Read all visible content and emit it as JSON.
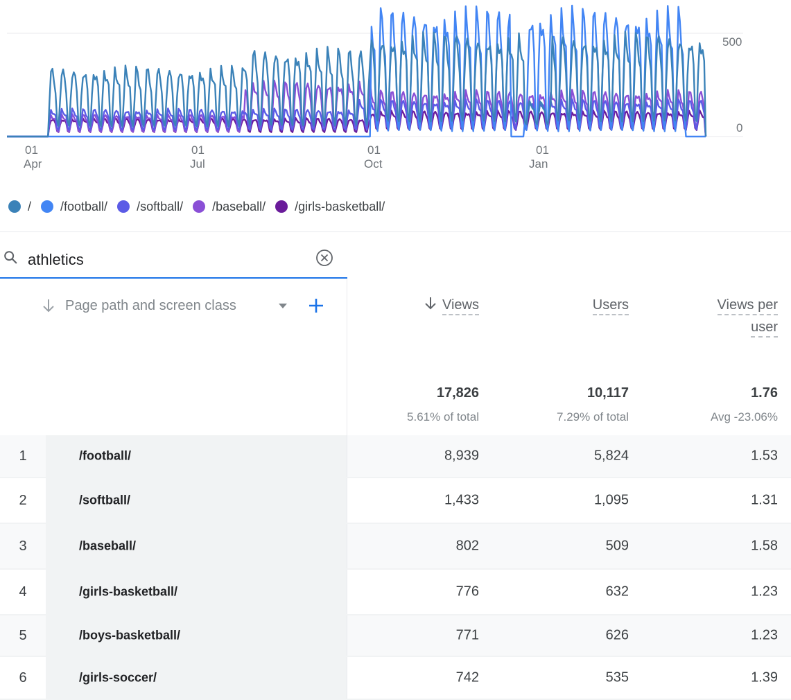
{
  "chart_data": {
    "type": "line",
    "x_ticks": [
      {
        "day": "01",
        "month": "Apr"
      },
      {
        "day": "01",
        "month": "Jul"
      },
      {
        "day": "01",
        "month": "Oct"
      },
      {
        "day": "01",
        "month": "Jan"
      }
    ],
    "y_ticks": [
      "500",
      "0"
    ],
    "ylim": [
      0,
      700
    ],
    "series": [
      {
        "name": "/",
        "color": "#3b82b8",
        "pattern": "weekly",
        "segments": [
          {
            "start": 0.06,
            "end": 0.34,
            "base": 40,
            "peak": 380
          },
          {
            "start": 0.34,
            "end": 0.52,
            "base": 40,
            "peak": 480
          },
          {
            "start": 0.52,
            "end": 0.74,
            "base": 60,
            "peak": 560
          },
          {
            "start": 0.74,
            "end": 0.78,
            "base": 60,
            "peak": 190
          },
          {
            "start": 0.78,
            "end": 1.0,
            "base": 60,
            "peak": 560
          }
        ]
      },
      {
        "name": "/football/",
        "color": "#4285f4",
        "pattern": "weekly",
        "segments": [
          {
            "start": 0.0,
            "end": 0.52,
            "base": 0,
            "peak": 0
          },
          {
            "start": 0.52,
            "end": 0.72,
            "base": 0,
            "peak": 700
          },
          {
            "start": 0.72,
            "end": 0.74,
            "base": 0,
            "peak": 0
          },
          {
            "start": 0.74,
            "end": 0.97,
            "base": 0,
            "peak": 700
          },
          {
            "start": 0.97,
            "end": 1.0,
            "base": 0,
            "peak": 0
          }
        ]
      },
      {
        "name": "/softball/",
        "color": "#5b5be6",
        "pattern": "weekly",
        "segments": [
          {
            "start": 0.06,
            "end": 0.5,
            "base": 30,
            "peak": 150
          },
          {
            "start": 0.5,
            "end": 1.0,
            "base": 30,
            "peak": 200
          }
        ]
      },
      {
        "name": "/baseball/",
        "color": "#8a4fd6",
        "pattern": "weekly",
        "segments": [
          {
            "start": 0.06,
            "end": 0.34,
            "base": 20,
            "peak": 120
          },
          {
            "start": 0.34,
            "end": 0.52,
            "base": 40,
            "peak": 300
          },
          {
            "start": 0.52,
            "end": 1.0,
            "base": 40,
            "peak": 250
          }
        ]
      },
      {
        "name": "/girls-basketball/",
        "color": "#6a1b9a",
        "pattern": "weekly",
        "segments": [
          {
            "start": 0.06,
            "end": 0.52,
            "base": 20,
            "peak": 100
          },
          {
            "start": 0.52,
            "end": 1.0,
            "base": 30,
            "peak": 140
          }
        ]
      }
    ]
  },
  "search": {
    "value": "athletics"
  },
  "table": {
    "dimension_label": "Page path and screen class",
    "columns": {
      "views": "Views",
      "users": "Users",
      "views_per_user_line1": "Views per",
      "views_per_user_line2": "user"
    },
    "totals": {
      "views": "17,826",
      "views_sub": "5.61% of total",
      "users": "10,117",
      "users_sub": "7.29% of total",
      "vpu": "1.76",
      "vpu_sub": "Avg -23.06%"
    },
    "rows": [
      {
        "idx": "1",
        "path": "/football/",
        "views": "8,939",
        "users": "5,824",
        "vpu": "1.53"
      },
      {
        "idx": "2",
        "path": "/softball/",
        "views": "1,433",
        "users": "1,095",
        "vpu": "1.31"
      },
      {
        "idx": "3",
        "path": "/baseball/",
        "views": "802",
        "users": "509",
        "vpu": "1.58"
      },
      {
        "idx": "4",
        "path": "/girls-basketball/",
        "views": "776",
        "users": "632",
        "vpu": "1.23"
      },
      {
        "idx": "5",
        "path": "/boys-basketball/",
        "views": "771",
        "users": "626",
        "vpu": "1.23"
      },
      {
        "idx": "6",
        "path": "/girls-soccer/",
        "views": "742",
        "users": "535",
        "vpu": "1.39"
      }
    ]
  },
  "icons": {
    "search": "search-icon",
    "clear": "clear-circle-icon",
    "sort": "arrow-down-icon",
    "caret": "caret-down-icon",
    "add": "plus-icon"
  }
}
